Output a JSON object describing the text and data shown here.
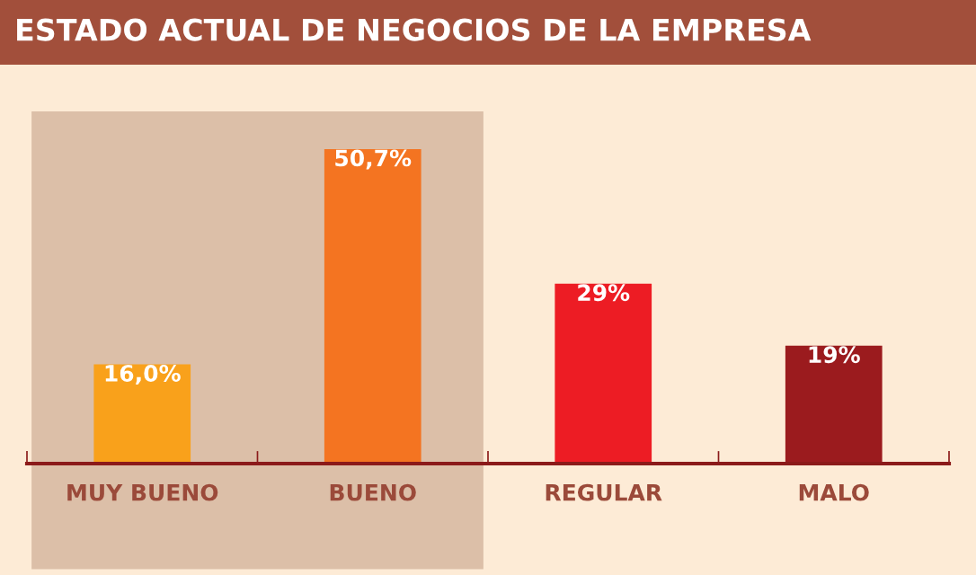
{
  "chart_data": {
    "type": "bar",
    "title": "ESTADO ACTUAL DE NEGOCIOS DE LA EMPRESA",
    "categories": [
      "MUY BUENO",
      "BUENO",
      "REGULAR",
      "MALO"
    ],
    "values": [
      16.0,
      50.7,
      29,
      19
    ],
    "colors": [
      "#f9a11b",
      "#f47421",
      "#ed1c24",
      "#9b1b1e"
    ],
    "value_labels": [
      "16,0%",
      "50,7%",
      "29%",
      "19%"
    ],
    "bands": [
      {
        "axis": "x",
        "from": "MUY BUENO",
        "to": "BUENO",
        "color": "#dcbfa8"
      }
    ],
    "grid": false,
    "legend": false
  }
}
